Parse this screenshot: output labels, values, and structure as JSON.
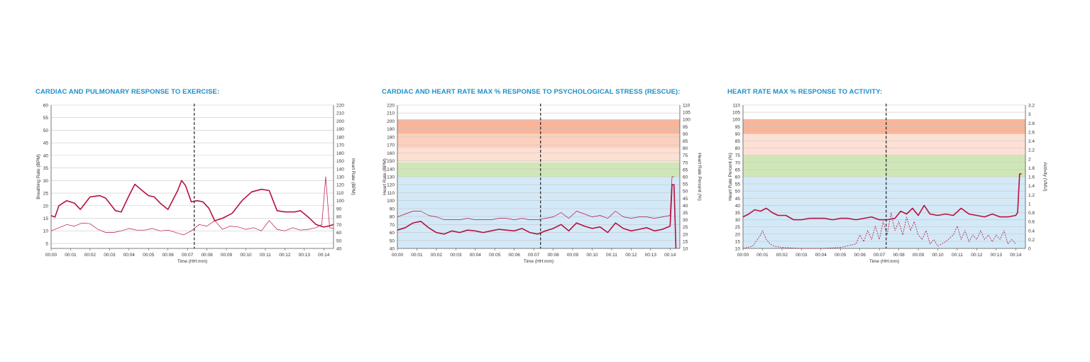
{
  "chart_data": [
    {
      "type": "line",
      "title": "CARDIAC AND PULMONARY RESPONSE TO EXERCISE:",
      "xlabel": "Time (HH:mm)",
      "ylabel": "Breathing Rate (BPM)",
      "y2label": "Heart Rate (BPM)",
      "x_ticks": [
        "00:00",
        "00:01",
        "00:02",
        "00:03",
        "00:04",
        "00:05",
        "00:06",
        "00:07",
        "00:08",
        "00:09",
        "00:10",
        "00:11",
        "00:12",
        "00:13",
        "00:14"
      ],
      "xlim": [
        0,
        14.5
      ],
      "ylim": [
        3,
        60
      ],
      "y_ticks": [
        5,
        10,
        15,
        20,
        25,
        30,
        35,
        40,
        45,
        50,
        55,
        60
      ],
      "y2lim": [
        40,
        220
      ],
      "y2_ticks": [
        40,
        50,
        60,
        70,
        80,
        90,
        100,
        110,
        120,
        130,
        140,
        150,
        160,
        170,
        180,
        190,
        200,
        210,
        220
      ],
      "grid": true,
      "marker_x": 7.35,
      "line_color": "#b5123d",
      "series": [
        {
          "axis": "left",
          "style": "bold",
          "x": [
            0,
            0.2,
            0.4,
            0.8,
            1.2,
            1.5,
            2,
            2.5,
            2.8,
            3.3,
            3.6,
            4,
            4.3,
            4.6,
            5,
            5.3,
            5.6,
            6,
            6.2,
            6.5,
            6.7,
            6.9,
            7.2,
            7.5,
            7.8,
            8.1,
            8.4,
            8.8,
            9.3,
            9.8,
            10.3,
            10.8,
            11.2,
            11.6,
            12,
            12.5,
            12.8,
            13.2,
            13.6,
            14,
            14.3,
            14.5
          ],
          "y": [
            16,
            15.5,
            20,
            22,
            21,
            18.5,
            23.5,
            24,
            23,
            18,
            17.5,
            24,
            28.5,
            26.5,
            24,
            23.5,
            21,
            18.5,
            21.5,
            26,
            30,
            28,
            21.5,
            22,
            21.5,
            19,
            14,
            15,
            17,
            22,
            25.5,
            26.5,
            26,
            18,
            17.5,
            17.5,
            18,
            15.5,
            12.5,
            11.5,
            12,
            12.5
          ]
        },
        {
          "axis": "right",
          "style": "thin",
          "x": [
            0,
            0.4,
            0.8,
            1.2,
            1.6,
            2,
            2.4,
            2.8,
            3.2,
            3.6,
            4,
            4.4,
            4.8,
            5.2,
            5.6,
            6,
            6.4,
            6.8,
            7.2,
            7.6,
            8,
            8.4,
            8.8,
            9.2,
            9.6,
            10,
            10.4,
            10.8,
            11.2,
            11.6,
            12,
            12.4,
            12.8,
            13.2,
            13.6,
            13.9,
            14.1,
            14.3,
            14.5
          ],
          "y": [
            62,
            66,
            70,
            68,
            72,
            71,
            64,
            60,
            60,
            62,
            65,
            63,
            63,
            65,
            62,
            63,
            60,
            57,
            62,
            70,
            68,
            75,
            64,
            68,
            67,
            64,
            66,
            62,
            75,
            64,
            62,
            66,
            63,
            64,
            66,
            70,
            130,
            66,
            65
          ]
        }
      ]
    },
    {
      "type": "line",
      "title": "CARDIAC AND HEART RATE MAX % RESPONSE TO PSYCHOLOGICAL STRESS (RESCUE):",
      "xlabel": "Time (HH:mm)",
      "ylabel": "Heart Rate (BPM)",
      "y2label": "Heart Rate Percent (%)",
      "x_ticks": [
        "00:00",
        "00:01",
        "00:02",
        "00:03",
        "00:04",
        "00:05",
        "00:06",
        "00:07",
        "00:08",
        "00:09",
        "00:10",
        "00:11",
        "00:12",
        "00:13",
        "00:14"
      ],
      "xlim": [
        0,
        14.5
      ],
      "ylim": [
        40,
        220
      ],
      "y_ticks": [
        40,
        50,
        60,
        70,
        80,
        90,
        100,
        110,
        120,
        130,
        140,
        150,
        160,
        170,
        180,
        190,
        200,
        210,
        220
      ],
      "y2lim": [
        10,
        110
      ],
      "y2_ticks": [
        10,
        15,
        20,
        25,
        30,
        35,
        40,
        45,
        50,
        55,
        60,
        65,
        70,
        75,
        80,
        85,
        90,
        95,
        100,
        105,
        110
      ],
      "grid": true,
      "marker_x": 7.35,
      "line_color": "#b5123d",
      "bands": [
        {
          "axis": "right",
          "from": 10,
          "to": 60,
          "color": "#d3e9f8"
        },
        {
          "axis": "right",
          "from": 60,
          "to": 70,
          "color": "#cfe7b6"
        },
        {
          "axis": "right",
          "from": 70,
          "to": 80,
          "color": "#fde0d4"
        },
        {
          "axis": "right",
          "from": 80,
          "to": 90,
          "color": "#fbd0bc"
        },
        {
          "axis": "right",
          "from": 90,
          "to": 100,
          "color": "#f8b59a"
        }
      ],
      "series": [
        {
          "axis": "left",
          "style": "bold",
          "x": [
            0,
            0.4,
            0.8,
            1.2,
            1.6,
            2,
            2.4,
            2.8,
            3.2,
            3.6,
            4,
            4.4,
            4.8,
            5.2,
            5.6,
            6,
            6.4,
            6.8,
            7.2,
            7.6,
            8,
            8.4,
            8.8,
            9.2,
            9.6,
            10,
            10.4,
            10.8,
            11.2,
            11.6,
            12,
            12.4,
            12.8,
            13.2,
            13.6,
            14,
            14.1,
            14.2,
            14.3
          ],
          "y": [
            63,
            66,
            72,
            74,
            66,
            60,
            58,
            62,
            60,
            63,
            62,
            60,
            62,
            64,
            63,
            62,
            65,
            60,
            58,
            62,
            65,
            70,
            62,
            72,
            68,
            65,
            67,
            60,
            72,
            65,
            62,
            64,
            66,
            62,
            64,
            68,
            120,
            120,
            40
          ]
        },
        {
          "axis": "right",
          "style": "thin",
          "x": [
            0,
            0.4,
            0.8,
            1.2,
            1.6,
            2,
            2.4,
            2.8,
            3.2,
            3.6,
            4,
            4.4,
            4.8,
            5.2,
            5.6,
            6,
            6.4,
            6.8,
            7.2,
            7.6,
            8,
            8.4,
            8.8,
            9.2,
            9.6,
            10,
            10.4,
            10.8,
            11.2,
            11.6,
            12,
            12.4,
            12.8,
            13.2,
            13.6,
            14,
            14.1,
            14.2
          ],
          "y": [
            32,
            34,
            36,
            36,
            33,
            32,
            30,
            30,
            30,
            31,
            30,
            30,
            30,
            31,
            31,
            30,
            31,
            30,
            30,
            31,
            32,
            35,
            31,
            36,
            34,
            32,
            33,
            31,
            36,
            32,
            31,
            32,
            32,
            31,
            32,
            33,
            60,
            60
          ]
        }
      ]
    },
    {
      "type": "line",
      "title": "HEART RATE MAX % RESPONSE TO ACTIVITY:",
      "xlabel": "Time (HH:mm)",
      "ylabel": "Heart Rate Percent (%)",
      "y2label": "Activity (VMU)",
      "x_ticks": [
        "00:00",
        "00:01",
        "00:02",
        "00:03",
        "00:04",
        "00:05",
        "00:06",
        "00:07",
        "00:08",
        "00:09",
        "00:10",
        "00:11",
        "00:12",
        "00:13",
        "00:14"
      ],
      "xlim": [
        0,
        14.5
      ],
      "ylim": [
        10,
        110
      ],
      "y_ticks": [
        10,
        15,
        20,
        25,
        30,
        35,
        40,
        45,
        50,
        55,
        60,
        65,
        70,
        75,
        80,
        85,
        90,
        95,
        100,
        105,
        110
      ],
      "y2lim": [
        0,
        3.2
      ],
      "y2_ticks": [
        0,
        0.2,
        0.4,
        0.6,
        0.8,
        1,
        1.2,
        1.4,
        1.6,
        1.8,
        2,
        2.2,
        2.4,
        2.6,
        2.8,
        3,
        3.2
      ],
      "grid": true,
      "marker_x": 7.35,
      "line_color": "#b5123d",
      "bands": [
        {
          "axis": "left",
          "from": 10,
          "to": 60,
          "color": "#d3e9f8"
        },
        {
          "axis": "left",
          "from": 60,
          "to": 75,
          "color": "#cfe7b6"
        },
        {
          "axis": "left",
          "from": 75,
          "to": 90,
          "color": "#fde0d4"
        },
        {
          "axis": "left",
          "from": 90,
          "to": 100,
          "color": "#f8b59a"
        }
      ],
      "series": [
        {
          "axis": "left",
          "style": "bold",
          "x": [
            0,
            0.3,
            0.6,
            0.9,
            1.2,
            1.5,
            1.8,
            2.2,
            2.6,
            3,
            3.4,
            3.8,
            4.2,
            4.6,
            5,
            5.4,
            5.8,
            6.2,
            6.6,
            7,
            7.4,
            7.8,
            8.1,
            8.4,
            8.7,
            9,
            9.3,
            9.6,
            10,
            10.4,
            10.8,
            11.2,
            11.6,
            12,
            12.4,
            12.8,
            13.2,
            13.6,
            14,
            14.1,
            14.2,
            14.3
          ],
          "y": [
            32,
            34,
            37,
            36,
            38,
            35,
            33,
            33,
            30,
            30,
            31,
            31,
            31,
            30,
            31,
            31,
            30,
            31,
            32,
            30,
            30,
            31,
            36,
            34,
            38,
            33,
            40,
            34,
            33,
            34,
            33,
            38,
            34,
            33,
            32,
            34,
            32,
            32,
            33,
            35,
            62,
            62
          ]
        },
        {
          "axis": "right",
          "style": "dashed",
          "x": [
            0,
            0.5,
            0.9,
            1.0,
            1.2,
            1.4,
            1.6,
            2,
            3,
            4,
            5,
            5.8,
            6,
            6.2,
            6.4,
            6.6,
            6.8,
            7,
            7.2,
            7.4,
            7.6,
            7.8,
            8,
            8.2,
            8.4,
            8.6,
            8.8,
            9,
            9.2,
            9.4,
            9.6,
            9.8,
            10,
            10.4,
            10.8,
            11,
            11.2,
            11.4,
            11.6,
            11.8,
            12,
            12.2,
            12.4,
            12.6,
            12.8,
            13,
            13.2,
            13.4,
            13.6,
            13.8,
            14
          ],
          "y": [
            0,
            0.05,
            0.3,
            0.4,
            0.2,
            0.1,
            0.05,
            0.02,
            0,
            0,
            0.02,
            0.1,
            0.3,
            0.15,
            0.4,
            0.2,
            0.5,
            0.2,
            0.6,
            0.3,
            0.8,
            0.4,
            0.6,
            0.3,
            0.7,
            0.4,
            0.6,
            0.3,
            0.2,
            0.4,
            0.1,
            0.2,
            0.05,
            0.15,
            0.3,
            0.5,
            0.2,
            0.4,
            0.15,
            0.3,
            0.2,
            0.4,
            0.2,
            0.3,
            0.15,
            0.3,
            0.2,
            0.4,
            0.1,
            0.2,
            0.1
          ]
        }
      ]
    }
  ]
}
